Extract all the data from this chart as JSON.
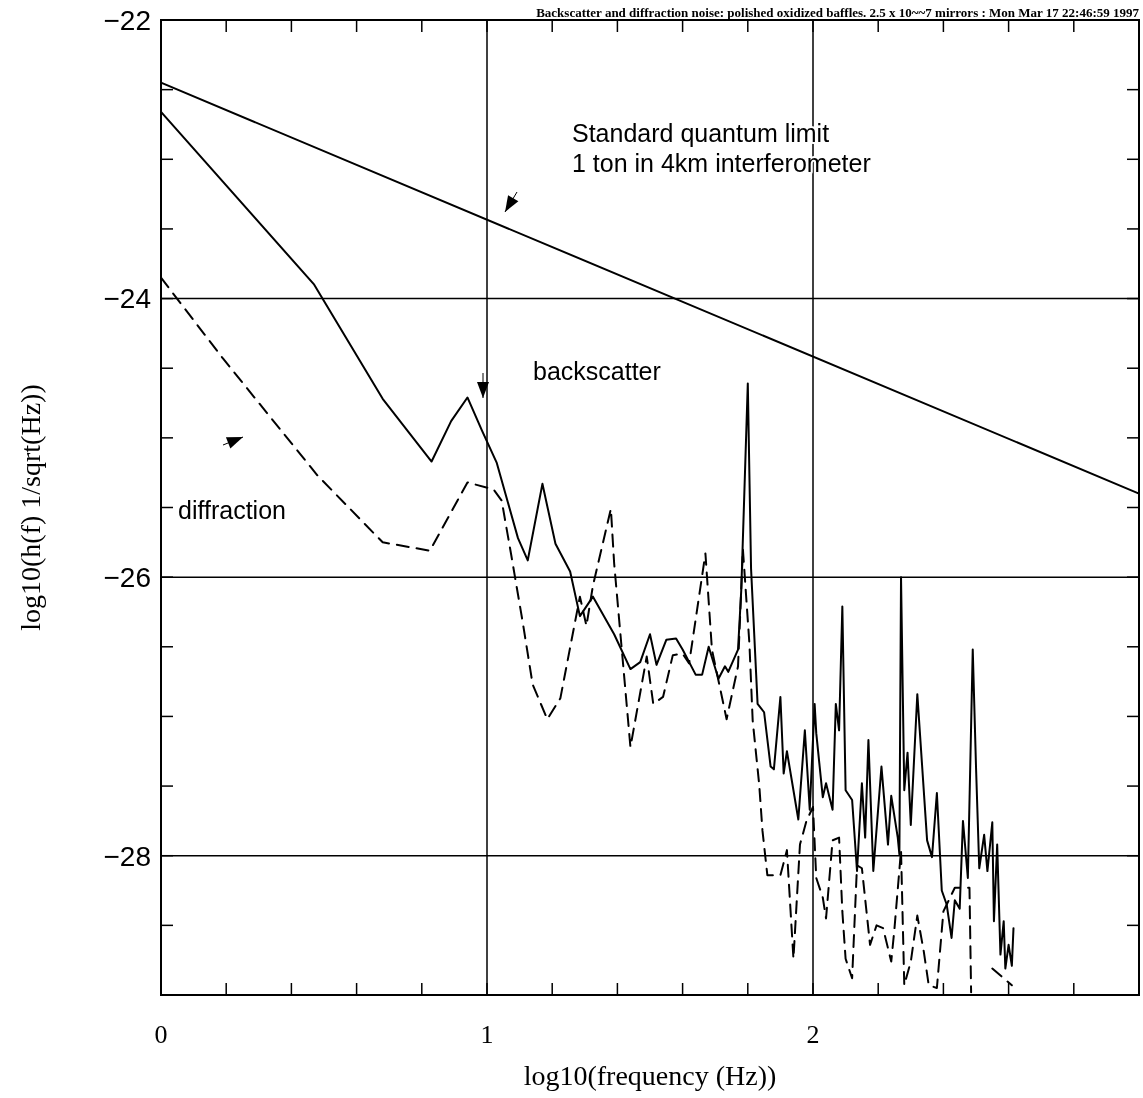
{
  "chart_data": {
    "type": "line",
    "title": "Backscatter and diffraction noise: polished oxidized baffles. 2.5 x 10~~7 mirrors : Mon Mar 17 22:46:59 1997",
    "xlabel": "log10(frequency (Hz))",
    "ylabel": "log10(h(f)  1/sqrt(Hz))",
    "xlim": [
      0,
      3
    ],
    "ylim": [
      -29,
      -22
    ],
    "xticks": [
      0,
      {
        "value": 0.2,
        "label": null
      },
      {
        "value": 0.4,
        "label": null
      },
      {
        "value": 0.6,
        "label": null
      },
      {
        "value": 0.8,
        "label": null
      },
      1,
      {
        "value": 1.2,
        "label": null
      },
      {
        "value": 1.4,
        "label": null
      },
      {
        "value": 1.6,
        "label": null
      },
      {
        "value": 1.8,
        "label": null
      },
      2,
      {
        "value": 2.2,
        "label": null
      },
      {
        "value": 2.4,
        "label": null
      },
      {
        "value": 2.6,
        "label": null
      },
      {
        "value": 2.8,
        "label": null
      }
    ],
    "yticks": [
      -22,
      {
        "value": -22.5,
        "label": null
      },
      {
        "value": -23,
        "label": null
      },
      {
        "value": -23.5,
        "label": null
      },
      -24,
      {
        "value": -24.5,
        "label": null
      },
      {
        "value": -25,
        "label": null
      },
      {
        "value": -25.5,
        "label": null
      },
      -26,
      {
        "value": -26.5,
        "label": null
      },
      {
        "value": -27,
        "label": null
      },
      {
        "value": -27.5,
        "label": null
      },
      -28,
      {
        "value": -28.5,
        "label": null
      }
    ],
    "grid": true,
    "marker": "none",
    "series": [
      {
        "color": "#000000",
        "line_style": "solid",
        "x": [
          0,
          3
        ],
        "values": [
          -22.45,
          -25.4
        ]
      },
      {
        "color": "#000000",
        "line_style": "solid",
        "x": [
          0,
          0.47,
          0.68,
          0.83,
          0.89,
          0.94,
          0.985,
          1.03,
          1.095,
          1.125,
          1.17,
          1.21,
          1.255,
          1.285,
          1.325,
          1.39,
          1.44,
          1.47,
          1.5,
          1.52,
          1.55,
          1.58,
          1.6,
          1.64,
          1.66,
          1.68,
          1.71,
          1.73,
          1.74,
          1.77,
          1.78,
          1.8,
          1.81,
          1.83,
          1.85,
          1.87,
          1.88,
          1.9,
          1.91,
          1.92,
          1.94,
          1.955,
          1.975,
          1.99,
          2.005,
          2.01,
          2.03,
          2.04,
          2.06,
          2.07,
          2.08,
          2.09,
          2.1,
          2.12,
          2.135,
          2.15,
          2.16,
          2.17,
          2.185,
          2.21,
          2.23,
          2.24,
          2.26,
          2.265,
          2.27,
          2.28,
          2.29,
          2.3,
          2.32,
          2.35,
          2.365,
          2.38,
          2.395,
          2.41,
          2.425,
          2.435,
          2.45,
          2.46,
          2.475,
          2.49,
          2.5,
          2.51,
          2.525,
          2.535,
          2.55,
          2.555,
          2.565,
          2.575,
          2.585,
          2.59,
          2.6,
          2.61,
          2.615
        ],
        "values": [
          -22.66,
          -23.9,
          -24.72,
          -25.17,
          -24.88,
          -24.71,
          -24.95,
          -25.18,
          -25.72,
          -25.88,
          -25.33,
          -25.76,
          -25.96,
          -26.28,
          -26.14,
          -26.41,
          -26.66,
          -26.61,
          -26.41,
          -26.63,
          -26.45,
          -26.44,
          -26.52,
          -26.7,
          -26.7,
          -26.5,
          -26.73,
          -26.64,
          -26.68,
          -26.52,
          -26.09,
          -24.61,
          -25.94,
          -26.91,
          -26.97,
          -27.36,
          -27.38,
          -26.86,
          -27.41,
          -27.25,
          -27.53,
          -27.74,
          -27.1,
          -27.67,
          -26.91,
          -27.12,
          -27.58,
          -27.48,
          -27.67,
          -26.91,
          -27.1,
          -26.21,
          -27.53,
          -27.6,
          -28.11,
          -27.48,
          -27.87,
          -27.17,
          -28.11,
          -27.36,
          -27.92,
          -27.57,
          -27.87,
          -27.99,
          -26.0,
          -27.53,
          -27.26,
          -27.78,
          -26.84,
          -27.89,
          -28.01,
          -27.55,
          -28.25,
          -28.35,
          -28.59,
          -28.32,
          -28.38,
          -27.75,
          -28.16,
          -26.52,
          -27.36,
          -28.09,
          -27.85,
          -28.11,
          -27.76,
          -28.47,
          -27.92,
          -28.71,
          -28.47,
          -28.81,
          -28.64,
          -28.79,
          -28.52
        ]
      },
      {
        "color": "#000000",
        "line_style": "dashed",
        "x": [
          0,
          0.19,
          0.48,
          0.68,
          0.825,
          0.94,
          1.02,
          1.045,
          1.075,
          1.11,
          1.14,
          1.185,
          1.225,
          1.285,
          1.305,
          1.325,
          1.38,
          1.39,
          1.44,
          1.49,
          1.51,
          1.54,
          1.57,
          1.6,
          1.62,
          1.67,
          1.69,
          1.735,
          1.77,
          1.785,
          1.805,
          1.815,
          1.835,
          1.845,
          1.86,
          1.9,
          1.92,
          1.94,
          1.96,
          1.98,
          2.0,
          2.01,
          2.03,
          2.04,
          2.06,
          2.08,
          2.09,
          2.1,
          2.12,
          2.135,
          2.15,
          2.175,
          2.195,
          2.215,
          2.24,
          2.25,
          2.27,
          2.28,
          2.3,
          2.32,
          2.34,
          2.355,
          2.38,
          2.4,
          2.435,
          2.48,
          2.485,
          2.52,
          2.55,
          2.61
        ],
        "values": [
          -23.85,
          -24.43,
          -25.27,
          -25.75,
          -25.81,
          -25.32,
          -25.37,
          -25.45,
          -25.85,
          -26.33,
          -26.77,
          -27.02,
          -26.87,
          -26.14,
          -26.35,
          -26.06,
          -25.51,
          -25.9,
          -27.22,
          -26.57,
          -26.91,
          -26.86,
          -26.56,
          -26.55,
          -26.62,
          -25.83,
          -26.52,
          -27.02,
          -26.64,
          -25.8,
          -26.48,
          -27.03,
          -27.49,
          -27.82,
          -28.14,
          -28.14,
          -27.96,
          -28.74,
          -27.92,
          -27.75,
          -27.65,
          -28.16,
          -28.3,
          -28.45,
          -27.89,
          -27.87,
          -28.4,
          -28.74,
          -28.88,
          -28.07,
          -28.09,
          -28.64,
          -28.5,
          -28.52,
          -28.76,
          -28.52,
          -27.96,
          -28.93,
          -28.76,
          -28.43,
          -28.69,
          -28.93,
          -28.95,
          -28.4,
          -28.23,
          -28.23,
          -28.98,
          null,
          -28.81,
          -28.93
        ]
      }
    ],
    "annotations": [
      "Standard quantum limit\n1 ton in 4km interferometer",
      "backscatter",
      "diffraction"
    ]
  }
}
